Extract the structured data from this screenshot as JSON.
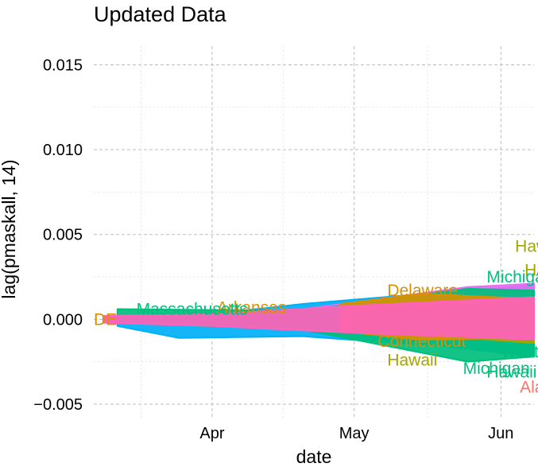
{
  "chart_data": {
    "type": "scatter",
    "title": "Updated Data",
    "xlabel": "date",
    "ylabel": "lag(pmaskall, 14)",
    "x_ticks": [
      "Apr",
      "May",
      "Jun"
    ],
    "x_tick_dates": [
      "2020-04-01",
      "2020-05-01",
      "2020-06-01"
    ],
    "xlim": [
      "2020-03-07",
      "2020-06-08"
    ],
    "ylim": [
      -0.0058,
      0.0161
    ],
    "y_ticks": [
      -0.005,
      0.0,
      0.005,
      0.01,
      0.015
    ],
    "y_tick_labels": [
      "−0.005",
      "0.000",
      "0.005",
      "0.010",
      "0.015"
    ],
    "grid": true,
    "legend": "none",
    "points": [
      {
        "label": "Hawai",
        "date": "2020-06-04",
        "y": 0.0043,
        "color": "#A3A500"
      },
      {
        "label": "Hawai",
        "date": "2020-06-06",
        "y": 0.0029,
        "color": "#A3A500"
      },
      {
        "label": "Michigan",
        "date": "2020-05-29",
        "y": 0.0025,
        "color": "#00BF7D"
      },
      {
        "label": "Delaware",
        "date": "2020-05-08",
        "y": 0.0017,
        "color": "#D89000"
      },
      {
        "label": "Arkansas",
        "date": "2020-04-02",
        "y": 0.0007,
        "color": "#D89000"
      },
      {
        "label": "Massachusetts",
        "date": "2020-03-16",
        "y": 0.0006,
        "color": "#00BF7D"
      },
      {
        "label": "DE",
        "date": "2020-03-07",
        "y": 0.0,
        "color": "#D89000"
      },
      {
        "label": "Connecticut",
        "date": "2020-05-06",
        "y": -0.0013,
        "color": "#D89000"
      },
      {
        "label": "Hawaii",
        "date": "2020-05-08",
        "y": -0.0024,
        "color": "#A3A500"
      },
      {
        "label": "Michigan",
        "date": "2020-05-24",
        "y": -0.0029,
        "color": "#00BF7D"
      },
      {
        "label": "West Virginia",
        "date": "2020-06-01",
        "y": -0.0019,
        "color": "#00BF7D"
      },
      {
        "label": "Hawaii",
        "date": "2020-05-29",
        "y": -0.0031,
        "color": "#00BF7D"
      },
      {
        "label": "Alaska",
        "date": "2020-06-05",
        "y": -0.004,
        "color": "#F8766D"
      }
    ],
    "series": [
      {
        "name": "",
        "color": "#F8766D",
        "band": [
          [
            "2020-03-09",
            0.0001,
            -0.0001
          ],
          [
            "2020-04-01",
            0.0003,
            -0.0003
          ],
          [
            "2020-05-01",
            0.0007,
            -0.0007
          ],
          [
            "2020-06-08",
            0.0016,
            -0.0016
          ]
        ]
      },
      {
        "name": "",
        "color": "#00B0F6",
        "band": [
          [
            "2020-03-12",
            0.0002,
            -0.0004
          ],
          [
            "2020-03-25",
            0.0001,
            -0.0011
          ],
          [
            "2020-04-20",
            0.0009,
            -0.001
          ],
          [
            "2020-05-20",
            0.0016,
            -0.0016
          ],
          [
            "2020-06-08",
            0.002,
            -0.0022
          ]
        ]
      },
      {
        "name": "",
        "color": "#E76BF3",
        "band": [
          [
            "2020-03-10",
            0.0002,
            -0.0002
          ],
          [
            "2020-04-15",
            0.0004,
            -0.0004
          ],
          [
            "2020-05-25",
            0.0019,
            -0.001
          ],
          [
            "2020-06-08",
            0.0021,
            -0.0012
          ]
        ]
      },
      {
        "name": "",
        "color": "#00BF7D",
        "band": [
          [
            "2020-03-12",
            0.0006,
            -0.0002
          ],
          [
            "2020-04-20",
            0.0005,
            -0.0006
          ],
          [
            "2020-05-25",
            0.0018,
            -0.0025
          ],
          [
            "2020-06-08",
            0.0017,
            -0.0022
          ]
        ]
      },
      {
        "name": "",
        "color": "#D89000",
        "band": [
          [
            "2020-04-28",
            0.0009,
            -0.0007
          ],
          [
            "2020-05-15",
            0.0015,
            -0.0012
          ],
          [
            "2020-06-08",
            0.0012,
            -0.0011
          ]
        ]
      },
      {
        "name": "",
        "color": "#A3A500",
        "band": [
          [
            "2020-05-01",
            0.0004,
            -0.0006
          ],
          [
            "2020-06-08",
            0.0011,
            -0.0014
          ]
        ]
      },
      {
        "name": "",
        "color": "#FF62BC",
        "band": [
          [
            "2020-03-09",
            0.0002,
            -0.0002
          ],
          [
            "2020-04-01",
            0.0003,
            -0.0004
          ],
          [
            "2020-05-01",
            0.0008,
            -0.0008
          ],
          [
            "2020-06-08",
            0.0013,
            -0.0012
          ]
        ]
      }
    ]
  }
}
